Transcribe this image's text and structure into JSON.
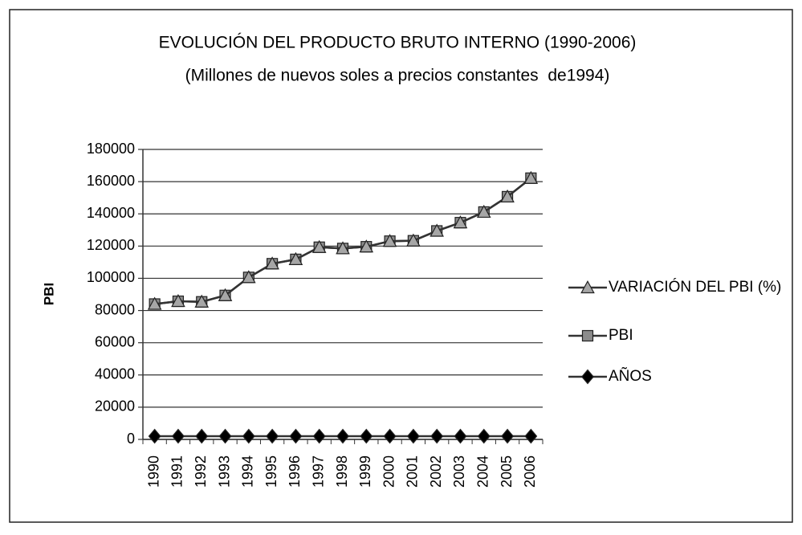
{
  "chart_data": {
    "type": "line",
    "stacked": true,
    "title": "EVOLUCIÓN DEL PRODUCTO BRUTO INTERNO (1990-2006)",
    "subtitle": "(Millones de nuevos soles a precios constantes  de1994)",
    "y_label": "PBI",
    "categories": [
      "1990",
      "1991",
      "1992",
      "1993",
      "1994",
      "1995",
      "1996",
      "1997",
      "1998",
      "1999",
      "2000",
      "2001",
      "2002",
      "2003",
      "2004",
      "2005",
      "2006"
    ],
    "series": [
      {
        "name": "VARIACIÓN DEL  PBI (%)",
        "color": "#a6a6a6",
        "marker": "triangle",
        "values": [
          -5.1,
          2.2,
          -0.4,
          4.8,
          12.8,
          8.6,
          2.5,
          6.9,
          -0.7,
          0.9,
          3.0,
          0.2,
          5.0,
          4.0,
          5.0,
          6.8,
          7.7
        ]
      },
      {
        "name": "PBI",
        "color": "#8c8c8c",
        "marker": "square",
        "values": [
          82032,
          83760,
          83401,
          87375,
          98577,
          107064,
          109760,
          117294,
          116522,
          117587,
          121057,
          121317,
          127402,
          132545,
          139141,
          148640,
          160145
        ]
      },
      {
        "name": "AÑOS",
        "color": "#000000",
        "marker": "diamond",
        "values": [
          1990,
          1991,
          1992,
          1993,
          1994,
          1995,
          1996,
          1997,
          1998,
          1999,
          2000,
          2001,
          2002,
          2003,
          2004,
          2005,
          2006
        ]
      }
    ],
    "ylim": [
      0,
      180000
    ],
    "yticks": [
      0,
      20000,
      40000,
      60000,
      80000,
      100000,
      120000,
      140000,
      160000,
      180000
    ],
    "grid": true,
    "legend": "right"
  }
}
